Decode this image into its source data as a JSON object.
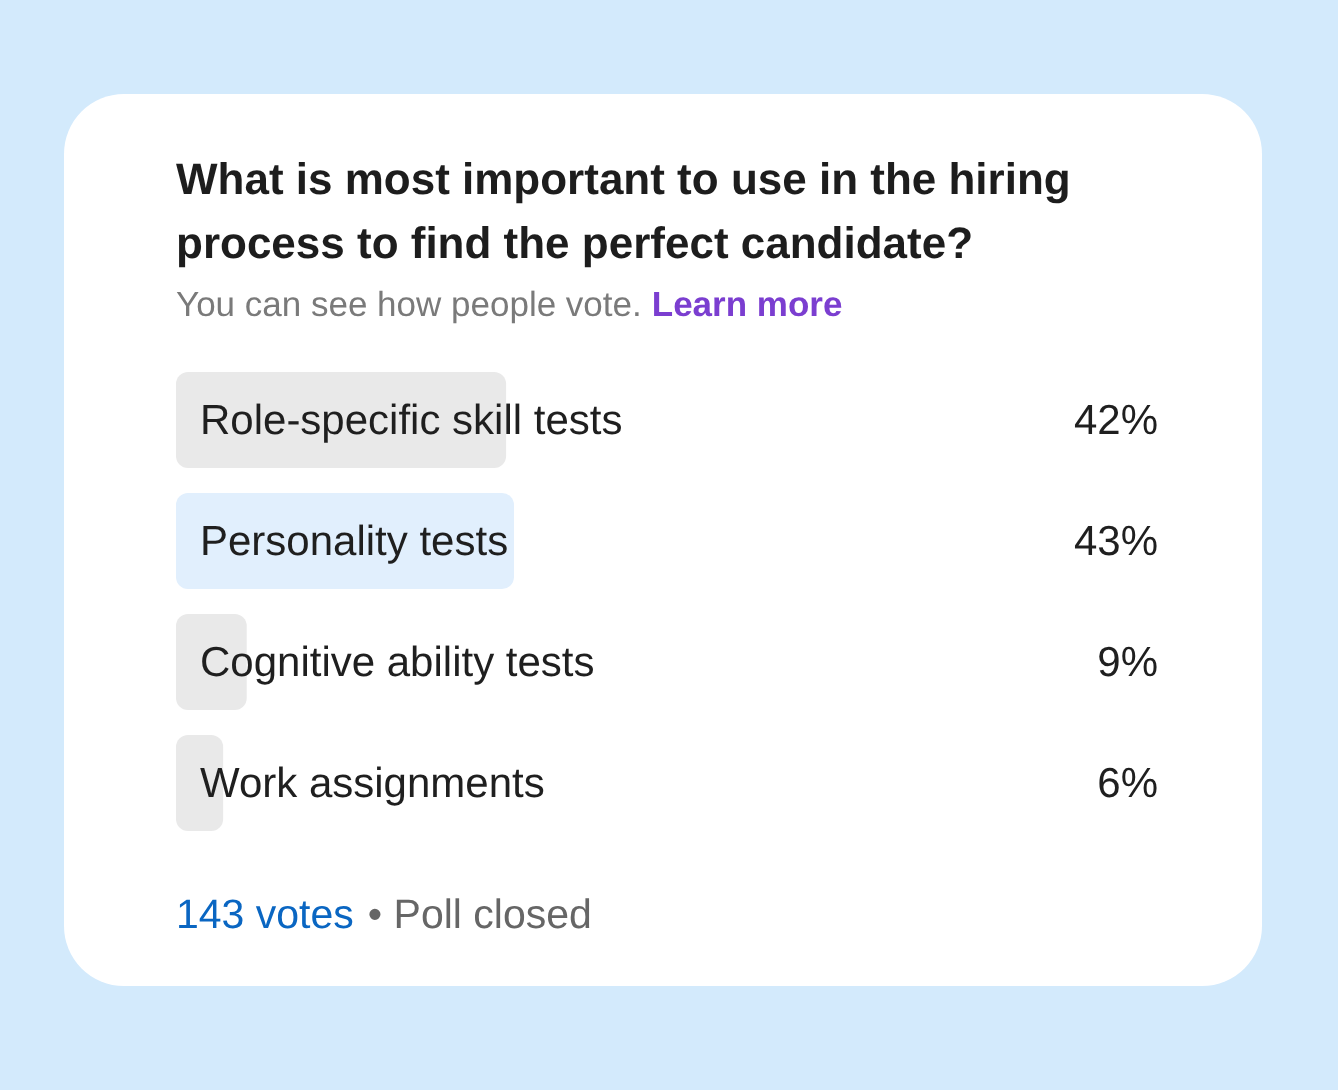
{
  "chart_data": {
    "type": "bar",
    "orientation": "horizontal",
    "title": "What is most important to use in the hiring process to find the perfect candidate?",
    "subtitle": "You can see how people vote.",
    "categories": [
      "Role-specific skill tests",
      "Personality tests",
      "Cognitive ability tests",
      "Work assignments"
    ],
    "values": [
      42,
      43,
      9,
      6
    ],
    "colors": [
      "#e9e9e9",
      "#e1effd",
      "#e9e9e9",
      "#e9e9e9"
    ],
    "value_labels": [
      "42%",
      "43%",
      "9%",
      "6%"
    ],
    "annotations": [
      "Learn more",
      "143 votes",
      "• Poll closed"
    ]
  }
}
